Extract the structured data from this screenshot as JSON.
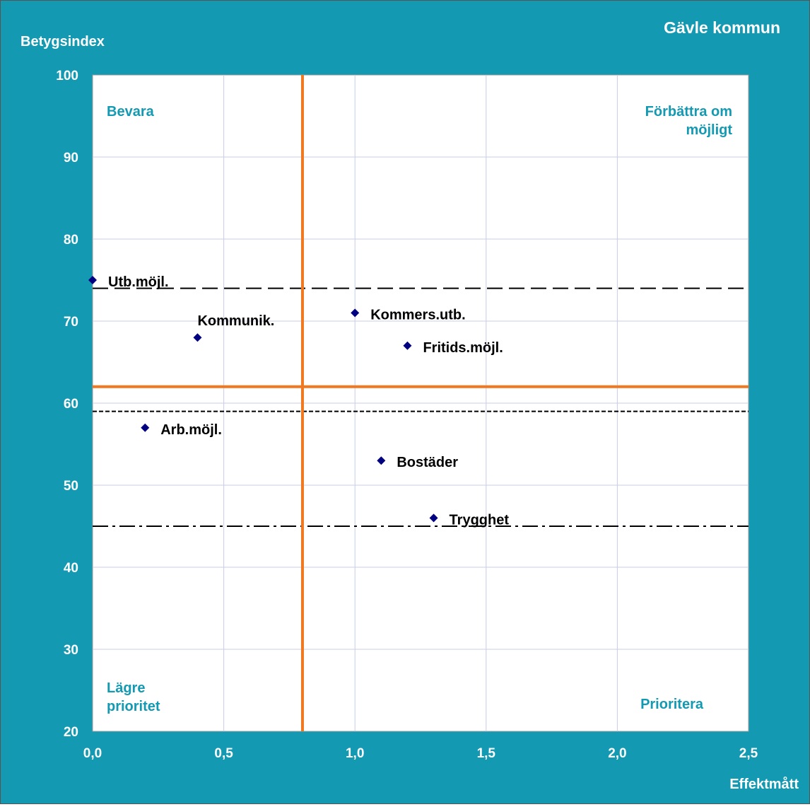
{
  "chart_data": {
    "type": "scatter",
    "title": "Gävle kommun",
    "xlabel": "Effektmått",
    "ylabel": "Betygsindex",
    "xlim": [
      0,
      2.5
    ],
    "ylim": [
      20,
      100
    ],
    "x_ticks": [
      "0,0",
      "0,5",
      "1,0",
      "1,5",
      "2,0",
      "2,5"
    ],
    "y_ticks": [
      "20",
      "30",
      "40",
      "50",
      "60",
      "70",
      "80",
      "90",
      "100"
    ],
    "grid": true,
    "points": [
      {
        "label": "Utb.möjl.",
        "x": 0.0,
        "y": 75
      },
      {
        "label": "Kommunik.",
        "x": 0.4,
        "y": 68
      },
      {
        "label": "Kommers.utb.",
        "x": 1.0,
        "y": 71
      },
      {
        "label": "Fritids.möjl.",
        "x": 1.2,
        "y": 67
      },
      {
        "label": "Arb.möjl.",
        "x": 0.2,
        "y": 57
      },
      {
        "label": "Bostäder",
        "x": 1.1,
        "y": 53
      },
      {
        "label": "Trygghet",
        "x": 1.3,
        "y": 46
      }
    ],
    "quadrant_lines": {
      "x": 0.8,
      "y": 62
    },
    "reference_lines": [
      {
        "y": 74,
        "style": "long-dash"
      },
      {
        "y": 59,
        "style": "short-dash"
      },
      {
        "y": 45,
        "style": "dash-dot"
      }
    ],
    "quadrant_labels": {
      "top_left": [
        "Bevara"
      ],
      "top_right": [
        "Förbättra om",
        "möjligt"
      ],
      "bottom_left": [
        "Lägre",
        "prioritet"
      ],
      "bottom_right": [
        "Prioritera"
      ]
    },
    "colors": {
      "background": "#1499b2",
      "plot_area": "#ffffff",
      "grid": "#c8cce8",
      "quadrant_line": "#f07820",
      "marker": "#000080",
      "quadrant_text": "#1499b2",
      "axis_text": "#ffffff",
      "point_text": "#000000"
    }
  }
}
